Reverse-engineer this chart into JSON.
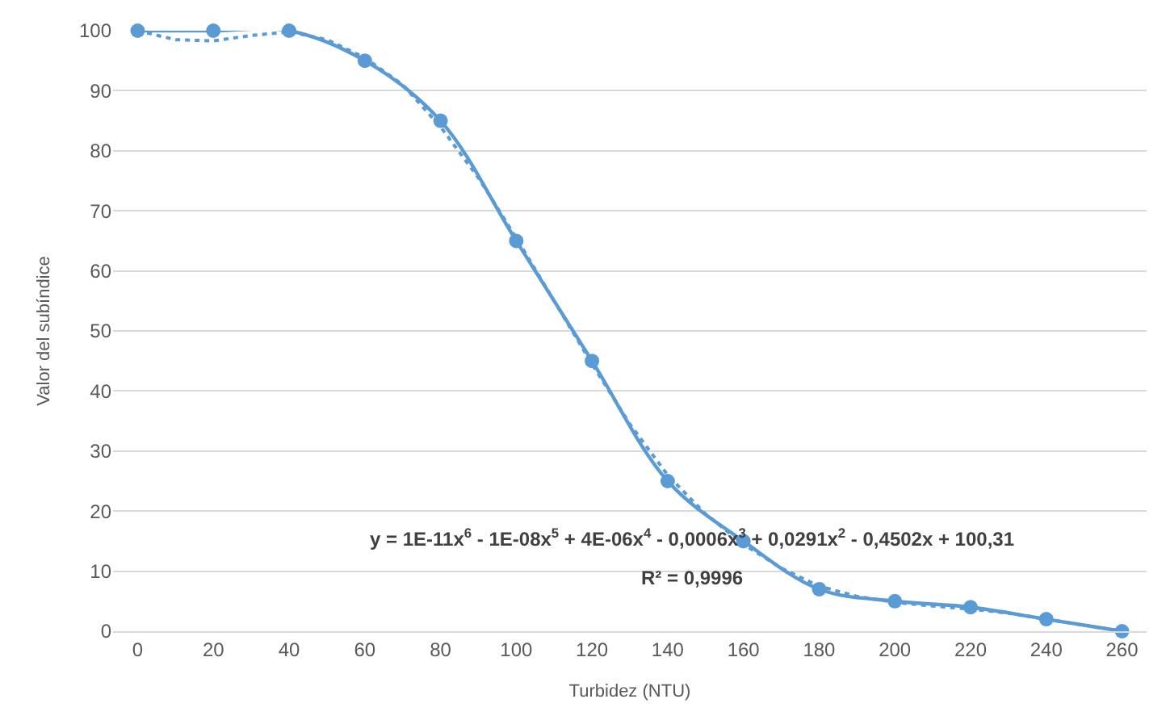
{
  "chart_data": {
    "type": "line",
    "xlabel": "Turbidez (NTU)",
    "ylabel": "Valor del subíndice",
    "xlim": [
      -6.5,
      266.5
    ],
    "xticks": [
      0,
      20,
      40,
      60,
      80,
      100,
      120,
      140,
      160,
      180,
      200,
      220,
      240,
      260
    ],
    "ylim": [
      0,
      100
    ],
    "yticks": [
      0,
      10,
      20,
      30,
      40,
      50,
      60,
      70,
      80,
      90,
      100
    ],
    "grid": "y",
    "series": [
      {
        "color": "#5b9bd5",
        "marker": "circle",
        "line_style": "solid",
        "x": [
          0,
          20,
          40,
          60,
          80,
          100,
          120,
          140,
          160,
          180,
          200,
          220,
          240,
          260
        ],
        "values": [
          100,
          100,
          100,
          95,
          85,
          65,
          45,
          25,
          15,
          7,
          5,
          4,
          2,
          0
        ]
      },
      {
        "color": "#5b9bd5",
        "marker": "none",
        "line_style": "dotted",
        "x": [
          0,
          10,
          20,
          30,
          40,
          50,
          60,
          70,
          80,
          90,
          100,
          110,
          120,
          130,
          140,
          150,
          160,
          170,
          180,
          190,
          200,
          210,
          220,
          230,
          240,
          250,
          260
        ],
        "values": [
          100,
          98.5,
          98.3,
          99.2,
          99.8,
          98.5,
          95.5,
          91,
          84,
          75.5,
          65.5,
          55,
          44.5,
          34.5,
          26,
          19.5,
          14.5,
          10.5,
          7.5,
          5.8,
          4.8,
          4.2,
          3.7,
          3,
          2,
          1,
          0
        ]
      }
    ],
    "annotations": [
      "y = 1E-11x$^{6}$ - 1E-08x$^{5}$ + 4E-06x$^{4}$ - 0,0006x$^{3}$ + 0,0291x$^{2}$ - 0,4502x + 100,31",
      "R² = 0,9996"
    ]
  }
}
